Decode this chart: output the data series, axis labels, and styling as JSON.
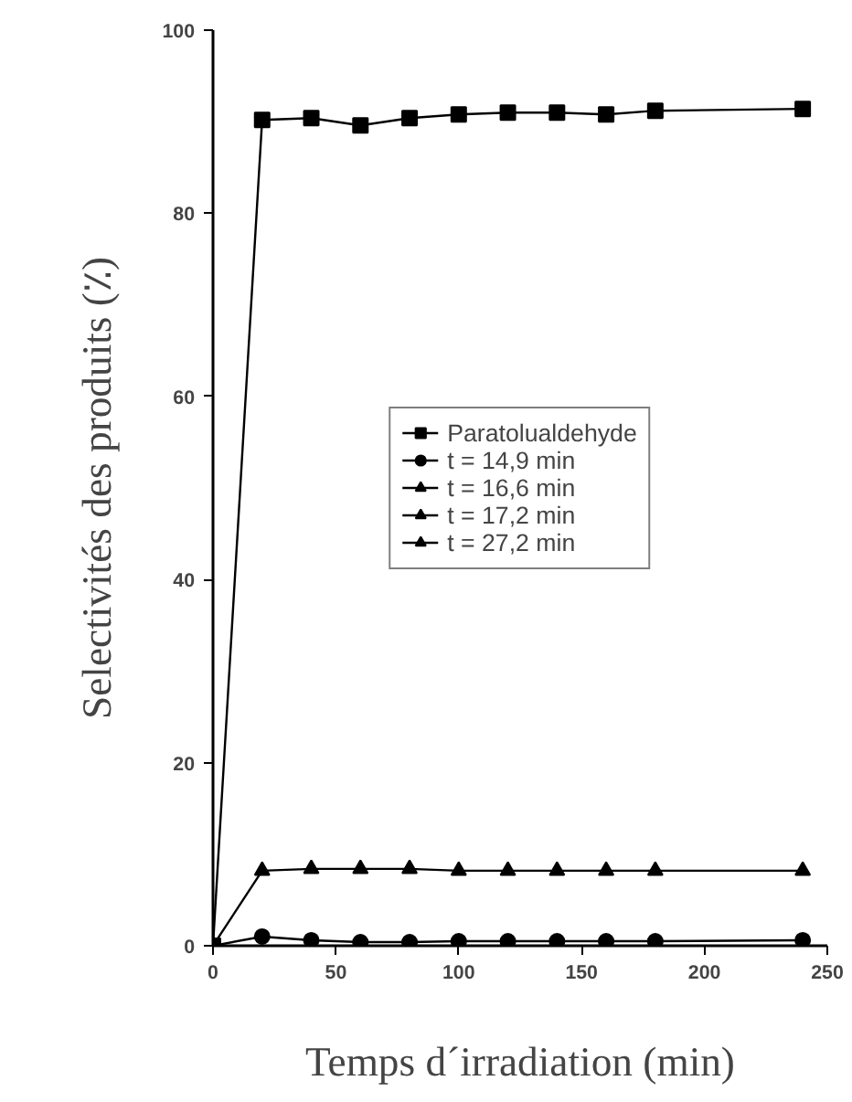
{
  "chart_data": {
    "type": "line",
    "xlabel": "Temps d´irradiation (min)",
    "ylabel": "Selectivités des produits (٪)",
    "xlim": [
      0,
      250
    ],
    "xticks": [
      0,
      50,
      100,
      150,
      200,
      250
    ],
    "ylim": [
      0,
      100
    ],
    "yticks": [
      0,
      20,
      40,
      60,
      80,
      100
    ],
    "x": [
      0,
      20,
      40,
      60,
      80,
      100,
      120,
      140,
      160,
      180,
      240
    ],
    "series": [
      {
        "name": "Paratolualdehyde",
        "color": "#000000",
        "marker": "square",
        "values": [
          0,
          90.2,
          90.4,
          89.6,
          90.4,
          90.8,
          91,
          91,
          90.8,
          91.2,
          91.4
        ]
      },
      {
        "name": "t = 14,9 min",
        "color": "#000000",
        "marker": "circle",
        "values": [
          0,
          1.0,
          0.6,
          0.4,
          0.4,
          0.5,
          0.5,
          0.5,
          0.5,
          0.5,
          0.6
        ]
      },
      {
        "name": "t = 16,6 min",
        "color": "#000000",
        "marker": "triangle",
        "values": [
          null,
          null,
          null,
          null,
          null,
          null,
          null,
          null,
          null,
          null,
          null
        ]
      },
      {
        "name": "t = 17,2 min",
        "color": "#000000",
        "marker": "triangle",
        "values": [
          null,
          null,
          null,
          null,
          null,
          null,
          null,
          null,
          null,
          null,
          null
        ]
      },
      {
        "name": "t = 27,2 min",
        "color": "#000000",
        "marker": "triangle",
        "values": [
          0,
          8.2,
          8.4,
          8.4,
          8.4,
          8.2,
          8.2,
          8.2,
          8.2,
          8.2,
          8.2
        ]
      }
    ],
    "legend": "center",
    "grid": false,
    "line_style": "solid"
  }
}
